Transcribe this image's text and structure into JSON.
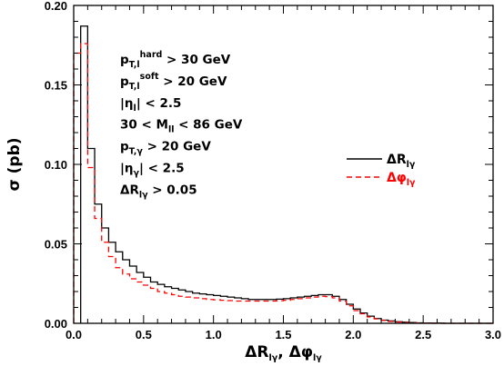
{
  "chart_data": {
    "type": "line",
    "step": true,
    "bin_width": 0.05,
    "xlim": [
      0,
      3.0
    ],
    "ylim": [
      0,
      0.2
    ],
    "xticks": [
      0.0,
      0.5,
      1.0,
      1.5,
      2.0,
      2.5,
      3.0
    ],
    "xtick_labels": [
      "0.0",
      "0.5",
      "1.0",
      "1.5",
      "2.0",
      "2.5",
      "3.0"
    ],
    "yticks": [
      0.0,
      0.05,
      0.1,
      0.15,
      0.2
    ],
    "ytick_labels": [
      "0.00",
      "0.05",
      "0.10",
      "0.15",
      "0.20"
    ],
    "xlabel": {
      "parts": [
        [
          "ΔR",
          ""
        ],
        [
          "lγ",
          "sub"
        ],
        [
          ",  Δφ",
          ""
        ],
        [
          "lγ",
          "sub"
        ]
      ]
    },
    "ylabel": {
      "parts": [
        [
          "σ  (pb)",
          ""
        ]
      ]
    },
    "annotations": [
      {
        "parts": [
          [
            "p",
            ""
          ],
          [
            "T,l",
            "sub"
          ],
          [
            "hard",
            "sup"
          ],
          [
            " > 30 GeV",
            ""
          ]
        ]
      },
      {
        "parts": [
          [
            "p",
            ""
          ],
          [
            "T,l",
            "sub"
          ],
          [
            "soft",
            "sup"
          ],
          [
            " > 20 GeV",
            ""
          ]
        ]
      },
      {
        "parts": [
          [
            "|η",
            ""
          ],
          [
            "l",
            "sub"
          ],
          [
            "| < 2.5",
            ""
          ]
        ]
      },
      {
        "parts": [
          [
            "30 < M",
            ""
          ],
          [
            "ll",
            "sub"
          ],
          [
            " < 86 GeV",
            ""
          ]
        ]
      },
      {
        "parts": [
          [
            "p",
            ""
          ],
          [
            "T,γ",
            "sub"
          ],
          [
            " > 20 GeV",
            ""
          ]
        ]
      },
      {
        "parts": [
          [
            "|η",
            ""
          ],
          [
            "γ",
            "sub"
          ],
          [
            "| < 2.5",
            ""
          ]
        ]
      },
      {
        "parts": [
          [
            "ΔR",
            ""
          ],
          [
            "lγ",
            "sub"
          ],
          [
            " > 0.05",
            ""
          ]
        ]
      }
    ],
    "legend_position": "right",
    "series": [
      {
        "name_parts": [
          [
            "ΔR",
            ""
          ],
          [
            "lγ",
            "sub"
          ]
        ],
        "color": "#000000",
        "dash": "",
        "x": [
          0.05,
          0.1,
          0.15,
          0.2,
          0.25,
          0.3,
          0.35,
          0.4,
          0.45,
          0.5,
          0.55,
          0.6,
          0.65,
          0.7,
          0.75,
          0.8,
          0.85,
          0.9,
          0.95,
          1.0,
          1.05,
          1.1,
          1.15,
          1.2,
          1.25,
          1.3,
          1.35,
          1.4,
          1.45,
          1.5,
          1.55,
          1.6,
          1.65,
          1.7,
          1.75,
          1.8,
          1.85,
          1.9,
          1.95,
          2.0,
          2.05,
          2.1,
          2.15,
          2.2,
          2.25,
          2.3,
          2.35,
          2.4,
          2.45,
          2.5,
          2.55,
          2.6,
          2.65,
          2.7,
          2.75,
          2.8,
          2.85,
          2.9,
          2.95
        ],
        "values": [
          0.187,
          0.11,
          0.075,
          0.06,
          0.051,
          0.045,
          0.04,
          0.036,
          0.032,
          0.029,
          0.026,
          0.0245,
          0.023,
          0.022,
          0.021,
          0.02,
          0.019,
          0.0185,
          0.018,
          0.0175,
          0.017,
          0.0165,
          0.016,
          0.0155,
          0.015,
          0.015,
          0.015,
          0.015,
          0.0152,
          0.0155,
          0.016,
          0.0165,
          0.017,
          0.0175,
          0.018,
          0.018,
          0.017,
          0.015,
          0.012,
          0.009,
          0.0065,
          0.0045,
          0.003,
          0.002,
          0.0015,
          0.001,
          0.0007,
          0.0005,
          0.0003,
          0.0002,
          0.0001,
          0.0001,
          0.0,
          0.0,
          0.0,
          0.0,
          0.0,
          0.0,
          0.0
        ]
      },
      {
        "name_parts": [
          [
            "Δφ",
            ""
          ],
          [
            "lγ",
            "sub"
          ]
        ],
        "color": "#ff0000",
        "dash": "6,4",
        "x": [
          0.0,
          0.05,
          0.1,
          0.15,
          0.2,
          0.25,
          0.3,
          0.35,
          0.4,
          0.45,
          0.5,
          0.55,
          0.6,
          0.65,
          0.7,
          0.75,
          0.8,
          0.85,
          0.9,
          0.95,
          1.0,
          1.05,
          1.1,
          1.15,
          1.2,
          1.25,
          1.3,
          1.35,
          1.4,
          1.45,
          1.5,
          1.55,
          1.6,
          1.65,
          1.7,
          1.75,
          1.8,
          1.85,
          1.9,
          1.95,
          2.0,
          2.05,
          2.1,
          2.15,
          2.2,
          2.25,
          2.3,
          2.35,
          2.4,
          2.45,
          2.5,
          2.55,
          2.6,
          2.65,
          2.7,
          2.75,
          2.8,
          2.85,
          2.9,
          2.95
        ],
        "values": [
          0.17,
          0.176,
          0.098,
          0.066,
          0.051,
          0.042,
          0.035,
          0.031,
          0.028,
          0.026,
          0.024,
          0.022,
          0.02,
          0.019,
          0.018,
          0.017,
          0.0165,
          0.016,
          0.0155,
          0.015,
          0.0148,
          0.0145,
          0.0143,
          0.014,
          0.014,
          0.014,
          0.014,
          0.014,
          0.014,
          0.0142,
          0.0145,
          0.015,
          0.0155,
          0.016,
          0.0165,
          0.017,
          0.0168,
          0.016,
          0.014,
          0.011,
          0.008,
          0.006,
          0.004,
          0.0028,
          0.0019,
          0.0012,
          0.0008,
          0.0005,
          0.0003,
          0.0002,
          0.0001,
          0.0,
          0.0,
          0.0,
          0.0,
          0.0,
          0.0,
          0.0,
          0.0,
          0.0
        ]
      }
    ]
  }
}
